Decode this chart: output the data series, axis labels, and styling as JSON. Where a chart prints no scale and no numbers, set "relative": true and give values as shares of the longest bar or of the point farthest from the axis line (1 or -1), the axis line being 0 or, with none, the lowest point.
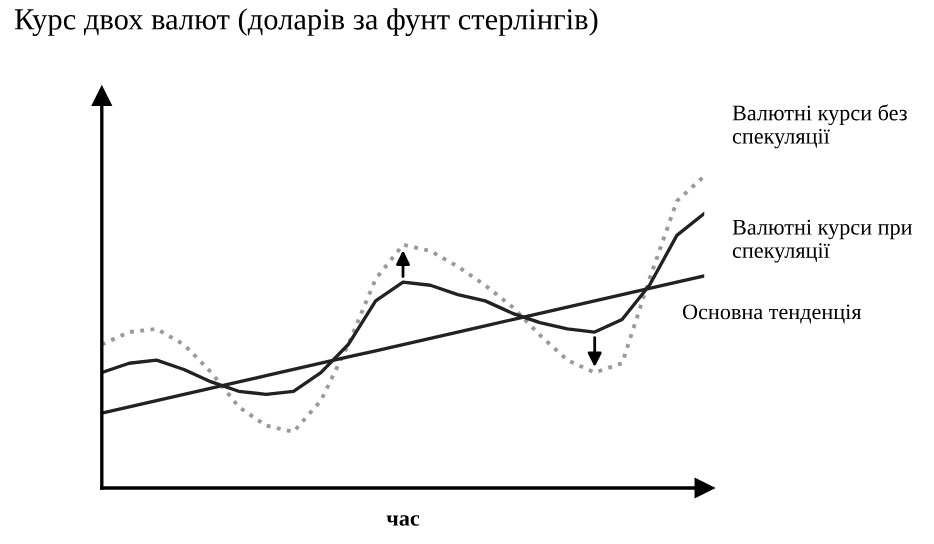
{
  "chart_data": {
    "type": "line",
    "title": "Курс двох валют (доларів за фунт стерлінгів)",
    "xlabel": "час",
    "relative": true,
    "legend": false,
    "marker": "none",
    "categories": [
      null,
      null,
      null,
      null,
      null,
      null,
      null,
      null,
      null,
      null,
      null,
      null,
      null,
      null,
      null,
      null,
      null,
      null,
      null,
      null,
      null,
      null,
      null
    ],
    "series": [
      {
        "name": "Валютні курси без спекуляції",
        "color": "#9a9a9a",
        "line_style": "dotted",
        "values": [
          0.46,
          0.5,
          0.51,
          0.46,
          0.37,
          0.26,
          0.2,
          0.18,
          0.28,
          0.46,
          0.67,
          0.78,
          0.76,
          0.71,
          0.65,
          0.58,
          0.49,
          0.41,
          0.37,
          0.4,
          0.67,
          0.92,
          1
        ]
      },
      {
        "name": "Валютні курси при спекуляції",
        "color": "#222222",
        "line_style": "solid",
        "values": [
          0.37,
          0.4,
          0.41,
          0.38,
          0.34,
          0.31,
          0.3,
          0.31,
          0.37,
          0.46,
          0.6,
          0.66,
          0.65,
          0.62,
          0.6,
          0.56,
          0.53,
          0.51,
          0.5,
          0.54,
          0.65,
          0.81,
          0.88
        ]
      },
      {
        "name": "Основна тенденція",
        "color": "#222222",
        "line_style": "solid",
        "values": [
          0.24,
          0.26,
          0.28,
          0.3,
          0.32,
          0.34,
          0.36,
          0.38,
          0.4,
          0.42,
          0.44,
          0.46,
          0.48,
          0.5,
          0.52,
          0.54,
          0.56,
          0.58,
          0.6,
          0.62,
          0.64,
          0.66,
          0.68
        ]
      }
    ]
  }
}
